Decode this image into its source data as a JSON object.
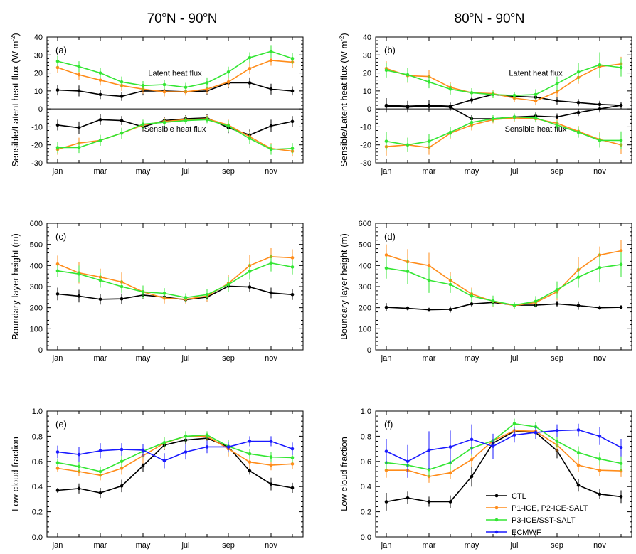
{
  "columns": [
    {
      "title_main": "70",
      "title_mid": "N - 90",
      "title_end": "N"
    },
    {
      "title_main": "80",
      "title_mid": "N - 90",
      "title_end": "N"
    }
  ],
  "legend": {
    "entries": [
      {
        "name": "CTL",
        "color": "#000000"
      },
      {
        "name": "P1-ICE, P2-ICE-SALT",
        "color": "#ff8c1a"
      },
      {
        "name": "P3-ICE/SST-SALT",
        "color": "#33e633"
      },
      {
        "name": "ECMWF",
        "color": "#1a1aff"
      }
    ]
  },
  "chart_data": [
    {
      "type": "line",
      "panel": "(a)",
      "ylabel_main": "Sensible/Latent heat flux (W m",
      "ylabel_sup": "-2",
      "ylabel_end": ")",
      "ylim": [
        -30,
        40
      ],
      "yticks": [
        -30,
        -20,
        -10,
        0,
        10,
        20,
        30,
        40
      ],
      "x": [
        1,
        2,
        3,
        4,
        5,
        6,
        7,
        8,
        9,
        10,
        11,
        12
      ],
      "xtick_labels": [
        "jan",
        "mar",
        "may",
        "jul",
        "sep",
        "nov"
      ],
      "xtick_positions": [
        1,
        3,
        5,
        7,
        9,
        11
      ],
      "zero_line": true,
      "annotations": [
        "Latent heat flux",
        "Sensible heat flux"
      ],
      "series": [
        {
          "name": "CTL",
          "color": "#000000",
          "values": [
            10.5,
            10,
            8,
            7,
            10,
            10,
            9.5,
            10,
            14.5,
            14.5,
            11,
            10
          ],
          "err": [
            3,
            3,
            2.5,
            2.5,
            2.5,
            2,
            2,
            2,
            3,
            3,
            3,
            2.5
          ]
        },
        {
          "name": "P1-ICE, P2-ICE-SALT",
          "color": "#ff8c1a",
          "values": [
            23,
            19,
            16,
            13,
            11,
            9.5,
            9.5,
            11,
            15,
            22.5,
            27,
            26
          ],
          "err": [
            3,
            3,
            3,
            3,
            2.5,
            2.5,
            2,
            2.5,
            3,
            3,
            3,
            3
          ]
        },
        {
          "name": "P3-ICE/SST-SALT",
          "color": "#33e633",
          "values": [
            26.5,
            23.5,
            20,
            15,
            13,
            13.5,
            12,
            14.5,
            20.5,
            28.5,
            32,
            28
          ],
          "err": [
            3,
            3,
            3,
            3,
            2.5,
            2.5,
            2.5,
            3,
            3,
            3,
            3.5,
            3
          ]
        },
        {
          "name": "CTL",
          "color": "#000000",
          "values": [
            -9,
            -10.5,
            -6,
            -6.5,
            -10,
            -6.5,
            -5.5,
            -5,
            -10.5,
            -14.5,
            -9.5,
            -7
          ],
          "err": [
            3,
            3.5,
            3,
            2.5,
            2.5,
            2,
            2,
            2,
            3,
            3,
            3.5,
            3
          ]
        },
        {
          "name": "P1-ICE, P2-ICE-SALT",
          "color": "#ff8c1a",
          "values": [
            -22.5,
            -19,
            -17.5,
            -13.5,
            -9,
            -7,
            -6,
            -5.5,
            -9,
            -15.5,
            -22,
            -23.5
          ],
          "err": [
            3,
            3,
            3,
            3,
            2.5,
            2,
            2,
            2,
            3,
            3,
            3,
            3
          ]
        },
        {
          "name": "P3-ICE/SST-SALT",
          "color": "#33e633",
          "values": [
            -21.5,
            -21.5,
            -17.5,
            -13.5,
            -8.5,
            -7.5,
            -6.5,
            -6,
            -9.5,
            -16.5,
            -22.5,
            -22
          ],
          "err": [
            3,
            3,
            3,
            3,
            2.5,
            2,
            2,
            2,
            3,
            3,
            3,
            3
          ]
        }
      ]
    },
    {
      "type": "line",
      "panel": "(b)",
      "ylim": [
        -30,
        40
      ],
      "yticks": [
        -30,
        -20,
        -10,
        0,
        10,
        20,
        30,
        40
      ],
      "x": [
        1,
        2,
        3,
        4,
        5,
        6,
        7,
        8,
        9,
        10,
        11,
        12
      ],
      "xtick_labels": [
        "jan",
        "mar",
        "may",
        "jul",
        "sep",
        "nov"
      ],
      "xtick_positions": [
        1,
        3,
        5,
        7,
        9,
        11
      ],
      "zero_line": true,
      "annotations": [
        "Latent heat flux",
        "Sensible heat flux"
      ],
      "series": [
        {
          "name": "CTL",
          "color": "#000000",
          "values": [
            2,
            1.5,
            2,
            1.5,
            5,
            8,
            7,
            6.5,
            4.5,
            3.5,
            2.5,
            2
          ],
          "err": [
            4,
            3,
            3,
            2,
            2,
            2,
            2,
            2,
            2,
            2,
            2,
            2
          ]
        },
        {
          "name": "P1-ICE, P2-ICE-SALT",
          "color": "#ff8c1a",
          "values": [
            22.5,
            18.5,
            18,
            12,
            9,
            8.5,
            6,
            4.5,
            9.5,
            17.5,
            23.5,
            25
          ],
          "err": [
            4,
            4,
            3.5,
            3,
            2.5,
            2,
            2,
            2.5,
            3,
            3.5,
            4,
            4
          ]
        },
        {
          "name": "P3-ICE/SST-SALT",
          "color": "#33e633",
          "values": [
            21.5,
            19,
            15,
            11,
            9,
            8,
            7.5,
            8,
            14,
            20.5,
            24.5,
            23
          ],
          "err": [
            4,
            4,
            3.5,
            3,
            2.5,
            2,
            2,
            3,
            4,
            5,
            7,
            5
          ]
        },
        {
          "name": "CTL",
          "color": "#000000",
          "values": [
            1.5,
            1,
            1.5,
            1,
            -5.5,
            -5.5,
            -4.5,
            -4,
            -4.5,
            -2,
            0,
            2
          ],
          "err": [
            3,
            3,
            3,
            2,
            2,
            2,
            2,
            2,
            2,
            2,
            2,
            2
          ]
        },
        {
          "name": "P1-ICE, P2-ICE-SALT",
          "color": "#ff8c1a",
          "values": [
            -21,
            -20,
            -21.5,
            -13.5,
            -9,
            -6,
            -5,
            -5.5,
            -8,
            -12.5,
            -17,
            -20
          ],
          "err": [
            5,
            4,
            4,
            3,
            3,
            2,
            2,
            2,
            2.5,
            3,
            4,
            5
          ]
        },
        {
          "name": "P3-ICE/SST-SALT",
          "color": "#33e633",
          "values": [
            -18,
            -20,
            -18,
            -13,
            -7.5,
            -5.5,
            -4.5,
            -5,
            -9,
            -13,
            -17.5,
            -17.5
          ],
          "err": [
            5,
            4,
            4,
            3,
            3,
            2,
            2,
            2,
            2.5,
            3,
            4,
            5
          ]
        }
      ]
    },
    {
      "type": "line",
      "panel": "(c)",
      "ylabel": "Boundary layer height (m)",
      "ylim": [
        0,
        600
      ],
      "yticks": [
        0,
        100,
        200,
        300,
        400,
        500,
        600
      ],
      "x": [
        1,
        2,
        3,
        4,
        5,
        6,
        7,
        8,
        9,
        10,
        11,
        12
      ],
      "xtick_labels": [
        "jan",
        "mar",
        "may",
        "jul",
        "sep",
        "nov"
      ],
      "xtick_positions": [
        1,
        3,
        5,
        7,
        9,
        11
      ],
      "series": [
        {
          "name": "CTL",
          "color": "#000000",
          "values": [
            265,
            255,
            240,
            242,
            260,
            250,
            238,
            250,
            302,
            298,
            270,
            262
          ],
          "err": [
            30,
            30,
            25,
            25,
            20,
            20,
            15,
            20,
            25,
            25,
            25,
            25
          ]
        },
        {
          "name": "P1-ICE, P2-ICE-SALT",
          "color": "#ff8c1a",
          "values": [
            407,
            365,
            345,
            322,
            275,
            245,
            240,
            255,
            315,
            400,
            442,
            437
          ],
          "err": [
            40,
            50,
            40,
            45,
            30,
            25,
            20,
            25,
            40,
            50,
            40,
            40
          ]
        },
        {
          "name": "P3-ICE/SST-SALT",
          "color": "#33e633",
          "values": [
            375,
            360,
            330,
            300,
            275,
            268,
            248,
            262,
            310,
            372,
            412,
            393
          ],
          "err": [
            30,
            40,
            35,
            30,
            30,
            25,
            20,
            25,
            35,
            40,
            40,
            35
          ]
        }
      ]
    },
    {
      "type": "line",
      "panel": "(d)",
      "ylabel": "Boundary layer height (m)",
      "ylim": [
        0,
        600
      ],
      "yticks": [
        0,
        100,
        200,
        300,
        400,
        500,
        600
      ],
      "x": [
        1,
        2,
        3,
        4,
        5,
        6,
        7,
        8,
        9,
        10,
        11,
        12
      ],
      "xtick_labels": [
        "jan",
        "mar",
        "may",
        "jul",
        "sep",
        "nov"
      ],
      "xtick_positions": [
        1,
        3,
        5,
        7,
        9,
        11
      ],
      "series": [
        {
          "name": "CTL",
          "color": "#000000",
          "values": [
            202,
            197,
            190,
            192,
            218,
            225,
            212,
            212,
            218,
            210,
            200,
            202
          ],
          "err": [
            20,
            10,
            10,
            15,
            15,
            15,
            10,
            10,
            15,
            20,
            10,
            10
          ]
        },
        {
          "name": "P1-ICE, P2-ICE-SALT",
          "color": "#ff8c1a",
          "values": [
            450,
            418,
            400,
            330,
            265,
            230,
            210,
            225,
            275,
            380,
            450,
            470
          ],
          "err": [
            50,
            60,
            60,
            40,
            30,
            25,
            15,
            20,
            40,
            60,
            40,
            50
          ]
        },
        {
          "name": "P3-ICE/SST-SALT",
          "color": "#33e633",
          "values": [
            388,
            372,
            330,
            310,
            255,
            232,
            212,
            230,
            285,
            345,
            390,
            405
          ],
          "err": [
            50,
            60,
            60,
            40,
            30,
            25,
            15,
            25,
            40,
            50,
            70,
            60
          ]
        }
      ]
    },
    {
      "type": "line",
      "panel": "(e)",
      "ylabel": "Low cloud fraction",
      "ylim": [
        0,
        1
      ],
      "yticks": [
        0.0,
        0.2,
        0.4,
        0.6,
        0.8,
        1.0
      ],
      "ytick_labels": [
        "0.0",
        "0.2",
        "0.4",
        "0.6",
        "0.8",
        "1.0"
      ],
      "x": [
        1,
        2,
        3,
        4,
        5,
        6,
        7,
        8,
        9,
        10,
        11,
        12
      ],
      "xtick_labels": [
        "jan",
        "mar",
        "may",
        "jul",
        "sep",
        "nov"
      ],
      "xtick_positions": [
        1,
        3,
        5,
        7,
        9,
        11
      ],
      "series": [
        {
          "name": "CTL",
          "color": "#000000",
          "values": [
            0.37,
            0.385,
            0.35,
            0.405,
            0.565,
            0.73,
            0.77,
            0.785,
            0.715,
            0.525,
            0.42,
            0.39
          ],
          "err": [
            0.02,
            0.04,
            0.04,
            0.05,
            0.05,
            0.04,
            0.03,
            0.03,
            0.04,
            0.03,
            0.05,
            0.04
          ]
        },
        {
          "name": "P1-ICE, P2-ICE-SALT",
          "color": "#ff8c1a",
          "values": [
            0.545,
            0.52,
            0.49,
            0.545,
            0.645,
            0.745,
            0.8,
            0.8,
            0.7,
            0.595,
            0.57,
            0.58
          ],
          "err": [
            0.03,
            0.04,
            0.04,
            0.05,
            0.06,
            0.05,
            0.04,
            0.03,
            0.06,
            0.05,
            0.04,
            0.04
          ]
        },
        {
          "name": "P3-ICE/SST-SALT",
          "color": "#33e633",
          "values": [
            0.59,
            0.56,
            0.52,
            0.6,
            0.68,
            0.75,
            0.8,
            0.81,
            0.72,
            0.66,
            0.635,
            0.63
          ],
          "err": [
            0.03,
            0.04,
            0.04,
            0.05,
            0.05,
            0.04,
            0.04,
            0.03,
            0.05,
            0.04,
            0.04,
            0.04
          ]
        },
        {
          "name": "ECMWF",
          "color": "#1a1aff",
          "values": [
            0.675,
            0.655,
            0.685,
            0.695,
            0.69,
            0.605,
            0.675,
            0.715,
            0.715,
            0.76,
            0.76,
            0.7
          ],
          "err": [
            0.05,
            0.06,
            0.06,
            0.05,
            0.05,
            0.06,
            0.06,
            0.05,
            0.04,
            0.04,
            0.04,
            0.05
          ]
        }
      ]
    },
    {
      "type": "line",
      "panel": "(f)",
      "ylabel": "Low cloud fraction",
      "ylim": [
        0,
        1
      ],
      "yticks": [
        0.0,
        0.2,
        0.4,
        0.6,
        0.8,
        1.0
      ],
      "ytick_labels": [
        "0.0",
        "0.2",
        "0.4",
        "0.6",
        "0.8",
        "1.0"
      ],
      "x": [
        1,
        2,
        3,
        4,
        5,
        6,
        7,
        8,
        9,
        10,
        11,
        12
      ],
      "xtick_labels": [
        "jan",
        "mar",
        "may",
        "jul",
        "sep",
        "nov"
      ],
      "xtick_positions": [
        1,
        3,
        5,
        7,
        9,
        11
      ],
      "series": [
        {
          "name": "CTL",
          "color": "#000000",
          "values": [
            0.28,
            0.31,
            0.28,
            0.28,
            0.48,
            0.745,
            0.84,
            0.83,
            0.685,
            0.41,
            0.34,
            0.32
          ],
          "err": [
            0.07,
            0.05,
            0.04,
            0.05,
            0.08,
            0.06,
            0.05,
            0.05,
            0.06,
            0.05,
            0.04,
            0.05
          ]
        },
        {
          "name": "P1-ICE, P2-ICE-SALT",
          "color": "#ff8c1a",
          "values": [
            0.53,
            0.53,
            0.48,
            0.51,
            0.615,
            0.765,
            0.845,
            0.84,
            0.73,
            0.57,
            0.53,
            0.525
          ],
          "err": [
            0.06,
            0.06,
            0.05,
            0.05,
            0.06,
            0.05,
            0.04,
            0.04,
            0.05,
            0.05,
            0.05,
            0.05
          ]
        },
        {
          "name": "P3-ICE/SST-SALT",
          "color": "#33e633",
          "values": [
            0.59,
            0.57,
            0.535,
            0.59,
            0.705,
            0.765,
            0.9,
            0.875,
            0.76,
            0.67,
            0.62,
            0.585
          ],
          "err": [
            0.06,
            0.06,
            0.06,
            0.06,
            0.06,
            0.05,
            0.04,
            0.04,
            0.05,
            0.05,
            0.05,
            0.06
          ]
        },
        {
          "name": "ECMWF",
          "color": "#1a1aff",
          "values": [
            0.68,
            0.6,
            0.69,
            0.715,
            0.775,
            0.72,
            0.81,
            0.83,
            0.845,
            0.85,
            0.8,
            0.71
          ],
          "err": [
            0.1,
            0.13,
            0.15,
            0.13,
            0.12,
            0.1,
            0.06,
            0.05,
            0.05,
            0.05,
            0.07,
            0.07
          ]
        }
      ]
    }
  ]
}
